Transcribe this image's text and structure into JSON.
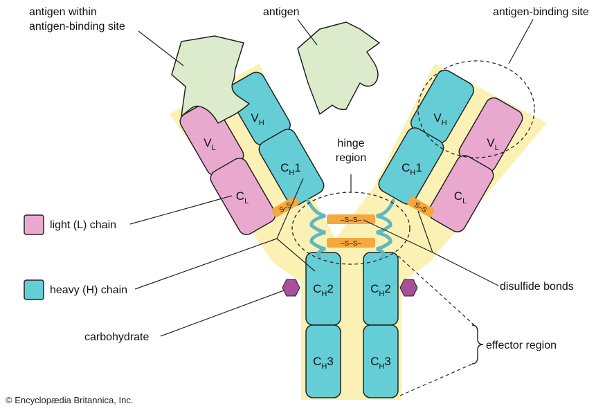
{
  "colors": {
    "light_chain": "#e9a9cf",
    "heavy_chain": "#64cdd5",
    "background_band": "#fbf1b4",
    "antigen": "#dcebcb",
    "disulfide": "#f5a83e",
    "carbohydrate": "#a8509a"
  },
  "labels": {
    "antigen_within": [
      "antigen within",
      "antigen-binding site"
    ],
    "antigen": "antigen",
    "binding_site": "antigen-binding site",
    "hinge": [
      "hinge",
      "region"
    ],
    "light_chain": "light (L) chain",
    "heavy_chain": "heavy (H) chain",
    "carbohydrate": "carbohydrate",
    "disulfide_bonds": "disulfide bonds",
    "effector_region": "effector region",
    "copyright": "© Encyclopædia Britannica, Inc."
  },
  "segments": {
    "vh": {
      "main": "V",
      "sub": "H"
    },
    "vl": {
      "main": "V",
      "sub": "L"
    },
    "ch1": {
      "main": "C",
      "sub": "H",
      "suffix": "1"
    },
    "cl": {
      "main": "C",
      "sub": "L"
    },
    "ch2": {
      "main": "C",
      "sub": "H",
      "suffix": "2"
    },
    "ch3": {
      "main": "C",
      "sub": "H",
      "suffix": "3"
    }
  },
  "bond_label": "S–S",
  "bond_label_hinge": "–S–S–"
}
